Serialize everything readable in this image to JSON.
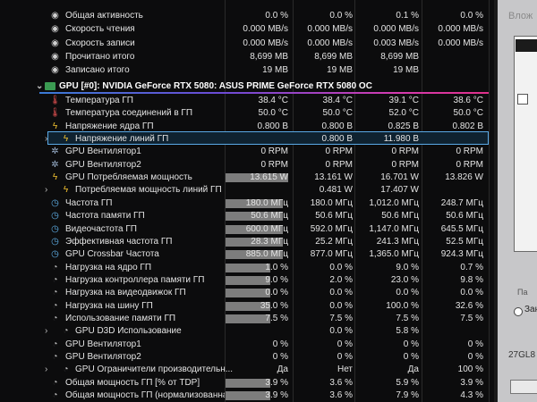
{
  "device_header": "GPU [#0]: NVIDIA GeForce RTX 5080: ASUS PRIME GeForce RTX 5080 OC",
  "pre_rows": [
    {
      "name": "Общая активность",
      "values": [
        "0.0 %",
        "0.0 %",
        "0.1 %",
        "0.0 %"
      ]
    },
    {
      "name": "Скорость чтения",
      "values": [
        "0.000 MB/s",
        "0.000 MB/s",
        "0.000 MB/s",
        "0.000 MB/s"
      ]
    },
    {
      "name": "Скорость записи",
      "values": [
        "0.000 MB/s",
        "0.000 MB/s",
        "0.003 MB/s",
        "0.000 MB/s"
      ]
    },
    {
      "name": "Прочитано итого",
      "values": [
        "8,699 MB",
        "8,699 MB",
        "8,699 MB",
        ""
      ]
    },
    {
      "name": "Записано итого",
      "values": [
        "19 MB",
        "19 MB",
        "19 MB",
        ""
      ]
    }
  ],
  "gpu_rows": [
    {
      "name": "Температура ГП",
      "icon": "thermometer-icon",
      "values": [
        "38.4 °C",
        "38.4 °C",
        "39.1 °C",
        "38.6 °C"
      ],
      "fill": 0
    },
    {
      "name": "Температура соединений в ГП",
      "icon": "thermometer-icon",
      "values": [
        "50.0 °C",
        "50.0 °C",
        "52.0 °C",
        "50.0 °C"
      ],
      "fill": 0
    },
    {
      "name": "Напряжение ядра ГП",
      "icon": "lightning-icon",
      "values": [
        "0.800 В",
        "0.800 В",
        "0.825 В",
        "0.802 В"
      ],
      "fill": 0
    },
    {
      "name": "Напряжение линий ГП",
      "icon": "lightning-icon",
      "values": [
        "",
        "0.800 В",
        "11.980 В",
        ""
      ],
      "fill": 0,
      "expandable": true,
      "selected": true
    },
    {
      "name": "GPU Вентилятор1",
      "icon": "fan-icon",
      "values": [
        "0 RPM",
        "0 RPM",
        "0 RPM",
        "0 RPM"
      ],
      "fill": 0
    },
    {
      "name": "GPU Вентилятор2",
      "icon": "fan-icon",
      "values": [
        "0 RPM",
        "0 RPM",
        "0 RPM",
        "0 RPM"
      ],
      "fill": 0
    },
    {
      "name": "GPU Потребляемая мощность",
      "icon": "lightning-icon",
      "values": [
        "13.615 W",
        "13.161 W",
        "16.701 W",
        "13.826 W"
      ],
      "fill": 1.0
    },
    {
      "name": "Потребляемая мощность линий ГП",
      "icon": "lightning-icon",
      "values": [
        "",
        "0.481 W",
        "17.407 W",
        ""
      ],
      "fill": 0,
      "expandable": true
    },
    {
      "name": "Частота ГП",
      "icon": "clock-icon",
      "values": [
        "180.0 МГц",
        "180.0 МГц",
        "1,012.0 МГц",
        "248.7 МГц"
      ],
      "fill": 0.92
    },
    {
      "name": "Частота памяти ГП",
      "icon": "clock-icon",
      "values": [
        "50.6 МГц",
        "50.6 МГц",
        "50.6 МГц",
        "50.6 МГц"
      ],
      "fill": 0.92
    },
    {
      "name": "Видеочастота ГП",
      "icon": "clock-icon",
      "values": [
        "600.0 МГц",
        "592.0 МГц",
        "1,147.0 МГц",
        "645.5 МГц"
      ],
      "fill": 0.92
    },
    {
      "name": "Эффективная частота ГП",
      "icon": "clock-icon",
      "values": [
        "28.3 МГц",
        "25.2 МГц",
        "241.3 МГц",
        "52.5 МГц"
      ],
      "fill": 0.92
    },
    {
      "name": "GPU Crossbar Частота",
      "icon": "clock-icon",
      "values": [
        "885.0 МГц",
        "877.0 МГц",
        "1,365.0 МГц",
        "924.3 МГц"
      ],
      "fill": 0.92
    },
    {
      "name": "Нагрузка на ядро ГП",
      "icon": "gauge-icon",
      "values": [
        "1.0 %",
        "0.0 %",
        "9.0 %",
        "0.7 %"
      ],
      "fill": 0.72
    },
    {
      "name": "Нагрузка контроллера памяти ГП",
      "icon": "gauge-icon",
      "values": [
        "9.0 %",
        "2.0 %",
        "23.0 %",
        "9.8 %"
      ],
      "fill": 0.72
    },
    {
      "name": "Нагрузка на видеодвижок ГП",
      "icon": "gauge-icon",
      "values": [
        "0.0 %",
        "0.0 %",
        "0.0 %",
        "0.0 %"
      ],
      "fill": 0.72
    },
    {
      "name": "Нагрузка на шину ГП",
      "icon": "gauge-icon",
      "values": [
        "35.0 %",
        "0.0 %",
        "100.0 %",
        "32.6 %"
      ],
      "fill": 0.72
    },
    {
      "name": "Использование памяти ГП",
      "icon": "gauge-icon",
      "values": [
        "7.5 %",
        "7.5 %",
        "7.5 %",
        "7.5 %"
      ],
      "fill": 0.72
    },
    {
      "name": "GPU D3D Использование",
      "icon": "gauge-icon",
      "values": [
        "",
        "0.0 %",
        "5.8 %",
        ""
      ],
      "fill": 0,
      "expandable": true,
      "group": true
    },
    {
      "name": "GPU Вентилятор1",
      "icon": "gauge-icon",
      "values": [
        "0 %",
        "0 %",
        "0 %",
        "0 %"
      ],
      "fill": 0
    },
    {
      "name": "GPU Вентилятор2",
      "icon": "gauge-icon",
      "values": [
        "0 %",
        "0 %",
        "0 %",
        "0 %"
      ],
      "fill": 0
    },
    {
      "name": "GPU Ограничители производительн...",
      "icon": "gauge-icon",
      "values": [
        "Да",
        "Нет",
        "Да",
        "100 %"
      ],
      "fill": 0,
      "expandable": true
    },
    {
      "name": "Общая мощность ГП [% от TDP]",
      "icon": "gauge-icon",
      "values": [
        "3.9 %",
        "3.6 %",
        "5.9 %",
        "3.9 %"
      ],
      "fill": 0.72
    },
    {
      "name": "Общая мощность ГП (нормализованна...",
      "icon": "gauge-icon",
      "values": [
        "3.9 %",
        "3.6 %",
        "7.9 %",
        "4.3 %"
      ],
      "fill": 0.72
    }
  ],
  "right_panel": {
    "title": "Влож",
    "label_top": "Па",
    "label_radio": "Зан",
    "label_bottom": "27GL8"
  }
}
